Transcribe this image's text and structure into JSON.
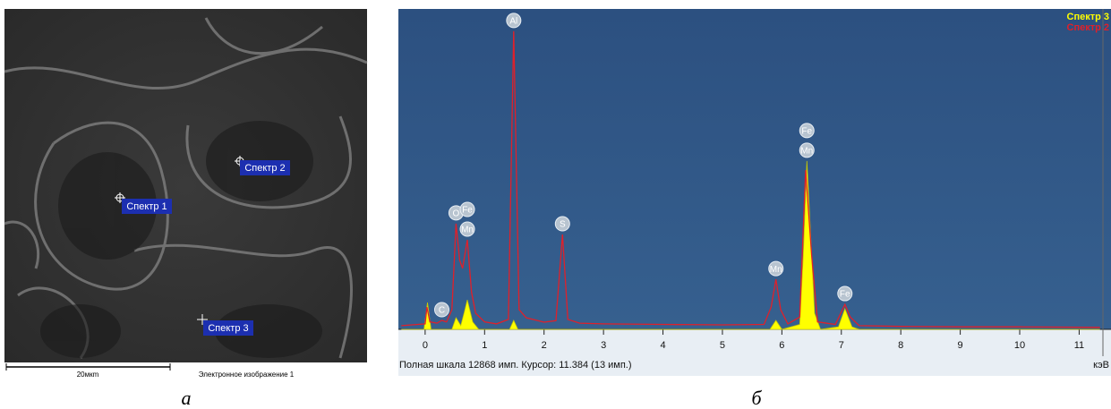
{
  "sem_image": {
    "spots": [
      "Спектр 1",
      "Спектр 2",
      "Спектр 3"
    ],
    "scale_bar": "20мкm",
    "caption": "Электронное изображение 1",
    "panel_label": "а"
  },
  "chart_data": {
    "type": "line",
    "panel_label": "б",
    "status": "Полная шкала 12868 имп. Курсор: 11.384  (13 имп.)",
    "x_unit": "кэВ",
    "xlim": [
      -0.45,
      11.4
    ],
    "ylim": [
      0,
      12868
    ],
    "xticks": [
      0,
      1,
      2,
      3,
      4,
      5,
      6,
      7,
      8,
      9,
      10,
      11
    ],
    "series": [
      {
        "name": "Спектр 3",
        "color": "#ffff00",
        "fill": true,
        "x": [
          -0.4,
          -0.02,
          0.04,
          0.1,
          0.45,
          0.52,
          0.6,
          0.66,
          0.71,
          0.8,
          0.9,
          1.42,
          1.49,
          1.56,
          5.8,
          5.9,
          6.0,
          6.3,
          6.36,
          6.42,
          6.48,
          6.55,
          6.65,
          6.95,
          7.06,
          7.18,
          7.3,
          11.35
        ],
        "values": [
          0,
          0,
          1080,
          0,
          0,
          470,
          150,
          700,
          1190,
          300,
          0,
          0,
          360,
          0,
          0,
          360,
          0,
          200,
          3000,
          6800,
          4000,
          650,
          0,
          100,
          830,
          100,
          0,
          0
        ]
      },
      {
        "name": "Спектр 2",
        "color": "#e0202a",
        "fill": false,
        "x": [
          -0.4,
          0,
          0.03,
          0.08,
          0.2,
          0.28,
          0.36,
          0.45,
          0.52,
          0.58,
          0.63,
          0.71,
          0.78,
          0.85,
          1.0,
          1.2,
          1.4,
          1.49,
          1.58,
          1.7,
          2.0,
          2.2,
          2.31,
          2.4,
          2.6,
          3,
          4,
          5,
          5.7,
          5.82,
          5.9,
          5.98,
          6.1,
          6.3,
          6.4,
          6.5,
          6.6,
          6.9,
          7.0,
          7.06,
          7.15,
          7.3,
          8,
          9,
          10,
          11.35
        ],
        "values": [
          150,
          220,
          900,
          300,
          250,
          360,
          300,
          800,
          4270,
          2800,
          2460,
          3615,
          1500,
          650,
          300,
          220,
          400,
          12040,
          800,
          470,
          290,
          350,
          3830,
          400,
          250,
          220,
          200,
          180,
          200,
          900,
          2020,
          800,
          220,
          500,
          6430,
          3000,
          300,
          200,
          700,
          1010,
          500,
          150,
          120,
          100,
          100,
          80
        ]
      }
    ],
    "annotations": [
      {
        "text": "C",
        "x": 0.28
      },
      {
        "text": "O",
        "x": 0.52
      },
      {
        "text": "Mn",
        "x": 0.71
      },
      {
        "text": "Fe",
        "x": 0.71
      },
      {
        "text": "Al",
        "x": 1.49
      },
      {
        "text": "S",
        "x": 2.31
      },
      {
        "text": "Mn",
        "x": 5.9
      },
      {
        "text": "Mn",
        "x": 6.42
      },
      {
        "text": "Fe",
        "x": 6.42
      },
      {
        "text": "Fe",
        "x": 7.06
      }
    ]
  }
}
